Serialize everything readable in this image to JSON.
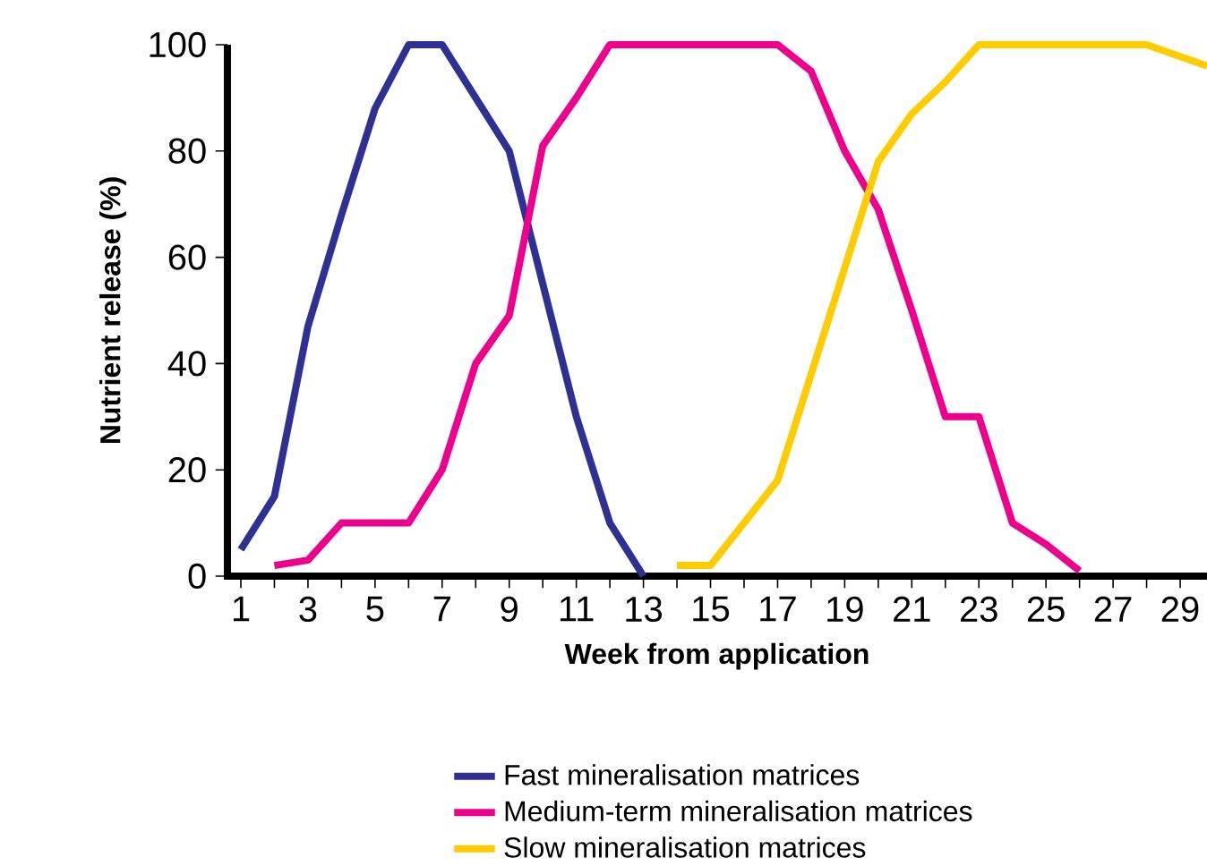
{
  "chart_data": {
    "type": "line",
    "xlabel": "Week from application",
    "ylabel": "Nutrient release (%)",
    "xlim": [
      0.6,
      29.8
    ],
    "ylim": [
      0,
      100
    ],
    "xticks": [
      1,
      {
        "value": 2,
        "label": null
      },
      3,
      {
        "value": 4,
        "label": null
      },
      5,
      {
        "value": 6,
        "label": null
      },
      7,
      {
        "value": 8,
        "label": null
      },
      9,
      {
        "value": 10,
        "label": null
      },
      11,
      {
        "value": 12,
        "label": null
      },
      13,
      {
        "value": 14,
        "label": null
      },
      15,
      {
        "value": 16,
        "label": null
      },
      17,
      {
        "value": 18,
        "label": null
      },
      19,
      {
        "value": 20,
        "label": null
      },
      21,
      {
        "value": 22,
        "label": null
      },
      23,
      {
        "value": 24,
        "label": null
      },
      25,
      {
        "value": 26,
        "label": null
      },
      27,
      {
        "value": 28,
        "label": null
      },
      29
    ],
    "yticks": [
      0,
      20,
      40,
      60,
      80,
      100
    ],
    "grid": false,
    "legend": "bottom",
    "marker": "none",
    "line_style": "solid",
    "series": [
      {
        "name": "Fast mineralisation matrices",
        "color": "#2e3192",
        "x": [
          1,
          2,
          3,
          4,
          5,
          6,
          7,
          8,
          9,
          10,
          11,
          12,
          13
        ],
        "values": [
          5,
          15,
          47,
          68,
          88,
          100,
          100,
          90,
          80,
          55,
          30,
          10,
          0
        ]
      },
      {
        "name": "Medium-term mineralisation matrices",
        "color": "#ec008c",
        "x": [
          2,
          3,
          4,
          5,
          6,
          7,
          8,
          9,
          10,
          11,
          12,
          13,
          14,
          15,
          16,
          17,
          18,
          19,
          20,
          21,
          22,
          23,
          24,
          25,
          26
        ],
        "values": [
          2,
          3,
          10,
          10,
          10,
          20,
          40,
          49,
          81,
          90,
          100,
          100,
          100,
          100,
          100,
          100,
          95,
          80,
          69,
          50,
          30,
          30,
          10,
          6,
          1
        ]
      },
      {
        "name": "Slow mineralisation matrices",
        "color": "#ffcc00",
        "x": [
          14,
          15,
          16,
          17,
          18,
          19,
          20,
          21,
          22,
          23,
          24,
          25,
          26,
          27,
          28,
          29.8
        ],
        "values": [
          2,
          2,
          10,
          18,
          38,
          58,
          78,
          87,
          93,
          100,
          100,
          100,
          100,
          100,
          100,
          96
        ]
      }
    ]
  }
}
